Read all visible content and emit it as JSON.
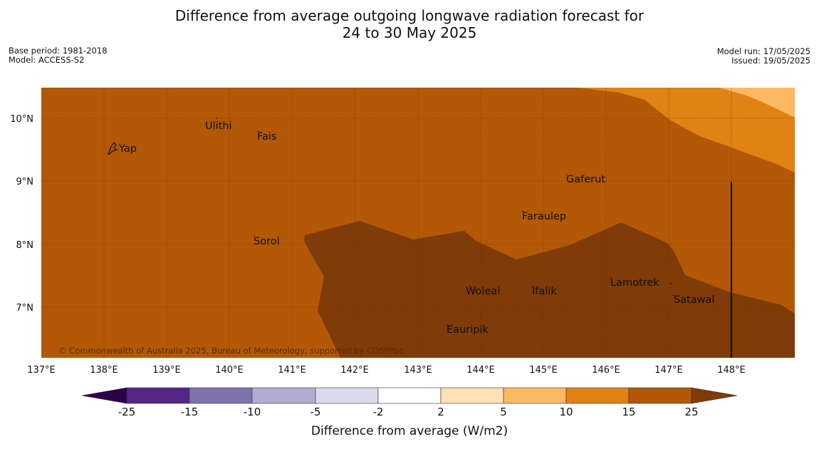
{
  "title_line1": "Difference from average outgoing longwave radiation forecast for",
  "title_line2": "24 to 30 May 2025",
  "base_period": "Base period: 1981-2018",
  "model": "Model: ACCESS-S2",
  "model_run": "Model run: 17/05/2025",
  "issued": "Issued: 19/05/2025",
  "copyright": "© Commonwealth of Australia 2025, Bureau of Meteorology, supported by COSPPac",
  "places": [
    "Yap",
    "Ulithi",
    "Fais",
    "Sorol",
    "Gaferut",
    "Faraulep",
    "Woleai",
    "Ifalik",
    "Lamotrek",
    "Satawal",
    "Eauripik"
  ],
  "x_ticks": [
    "137°E",
    "138°E",
    "139°E",
    "140°E",
    "141°E",
    "142°E",
    "143°E",
    "144°E",
    "145°E",
    "146°E",
    "147°E",
    "148°E"
  ],
  "y_ticks": [
    "10°N",
    "9°N",
    "8°N",
    "7°N"
  ],
  "colorbar": {
    "title": "Difference from average (W/m2)",
    "labels": [
      "-25",
      "-15",
      "-10",
      "-5",
      "-2",
      "2",
      "5",
      "10",
      "15",
      "25"
    ]
  },
  "colors": {
    "gt25": "#7f3b08",
    "c15_25": "#b35806",
    "c10_15": "#e08214",
    "c5_10": "#fdb863",
    "c2_5": "#fee0b6",
    "neutral": "#ffffff",
    "m5_m2": "#d8daeb",
    "m10_m5": "#b2abd2",
    "m15_m10": "#8073ac",
    "m25_m15": "#542788",
    "lt_m25": "#2d004b"
  }
}
